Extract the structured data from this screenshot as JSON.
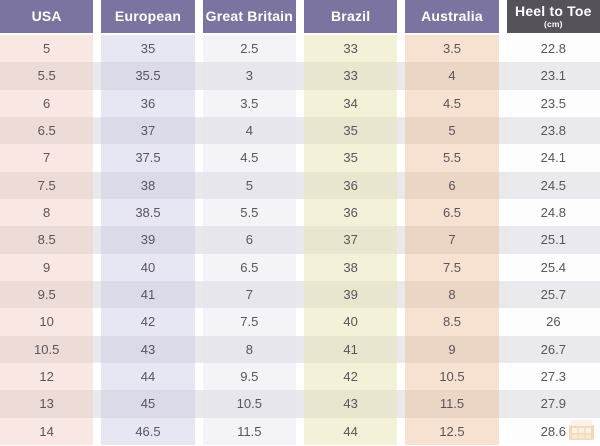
{
  "table": {
    "columns": [
      {
        "key": "usa",
        "label": "USA",
        "header_bg": "#7b73a0",
        "odd_bg": "#f9e7e3",
        "even_bg": "#ecdbd7"
      },
      {
        "key": "european",
        "label": "European",
        "header_bg": "#7b73a0",
        "odd_bg": "#e7e6f3",
        "even_bg": "#dbdae9"
      },
      {
        "key": "great-britain",
        "label": "Great Britain",
        "header_bg": "#7b73a0",
        "odd_bg": "#f4f3f8",
        "even_bg": "#e7e6ec"
      },
      {
        "key": "brazil",
        "label": "Brazil",
        "header_bg": "#7b73a0",
        "odd_bg": "#f3f1d8",
        "even_bg": "#e8e6cf"
      },
      {
        "key": "australia",
        "label": "Australia",
        "header_bg": "#7b73a0",
        "odd_bg": "#f7e1d0",
        "even_bg": "#ebd6c5"
      },
      {
        "key": "heel-to-toe",
        "label": "Heel to Toe",
        "sublabel": "(cm)",
        "header_bg": "#56525a",
        "odd_bg": "#fdfdfd",
        "even_bg": "#eae9ed"
      }
    ],
    "rows": [
      [
        "5",
        "35",
        "2.5",
        "33",
        "3.5",
        "22.8"
      ],
      [
        "5.5",
        "35.5",
        "3",
        "33",
        "4",
        "23.1"
      ],
      [
        "6",
        "36",
        "3.5",
        "34",
        "4.5",
        "23.5"
      ],
      [
        "6.5",
        "37",
        "4",
        "35",
        "5",
        "23.8"
      ],
      [
        "7",
        "37.5",
        "4.5",
        "35",
        "5.5",
        "24.1"
      ],
      [
        "7.5",
        "38",
        "5",
        "36",
        "6",
        "24.5"
      ],
      [
        "8",
        "38.5",
        "5.5",
        "36",
        "6.5",
        "24.8"
      ],
      [
        "8.5",
        "39",
        "6",
        "37",
        "7",
        "25.1"
      ],
      [
        "9",
        "40",
        "6.5",
        "38",
        "7.5",
        "25.4"
      ],
      [
        "9.5",
        "41",
        "7",
        "39",
        "8",
        "25.7"
      ],
      [
        "10",
        "42",
        "7.5",
        "40",
        "8.5",
        "26"
      ],
      [
        "10.5",
        "43",
        "8",
        "41",
        "9",
        "26.7"
      ],
      [
        "12",
        "44",
        "9.5",
        "42",
        "10.5",
        "27.3"
      ],
      [
        "13",
        "45",
        "10.5",
        "43",
        "11.5",
        "27.9"
      ],
      [
        "14",
        "46.5",
        "11.5",
        "44",
        "12.5",
        "28.6"
      ]
    ]
  },
  "chart_data": {
    "type": "table",
    "title": "Shoe size conversion table",
    "categories": [
      "USA",
      "European",
      "Great Britain",
      "Brazil",
      "Australia",
      "Heel to Toe (cm)"
    ],
    "series": [
      {
        "name": "USA",
        "values": [
          5,
          5.5,
          6,
          6.5,
          7,
          7.5,
          8,
          8.5,
          9,
          9.5,
          10,
          10.5,
          12,
          13,
          14
        ]
      },
      {
        "name": "European",
        "values": [
          35,
          35.5,
          36,
          37,
          37.5,
          38,
          38.5,
          39,
          40,
          41,
          42,
          43,
          44,
          45,
          46.5
        ]
      },
      {
        "name": "Great Britain",
        "values": [
          2.5,
          3,
          3.5,
          4,
          4.5,
          5,
          5.5,
          6,
          6.5,
          7,
          7.5,
          8,
          9.5,
          10.5,
          11.5
        ]
      },
      {
        "name": "Brazil",
        "values": [
          33,
          33,
          34,
          35,
          35,
          36,
          36,
          37,
          38,
          39,
          40,
          41,
          42,
          43,
          44
        ]
      },
      {
        "name": "Australia",
        "values": [
          3.5,
          4,
          4.5,
          5,
          5.5,
          6,
          6.5,
          7,
          7.5,
          8,
          8.5,
          9,
          10.5,
          11.5,
          12.5
        ]
      },
      {
        "name": "Heel to Toe (cm)",
        "values": [
          22.8,
          23.1,
          23.5,
          23.8,
          24.1,
          24.5,
          24.8,
          25.1,
          25.4,
          25.7,
          26,
          26.7,
          27.3,
          27.9,
          28.6
        ]
      }
    ]
  },
  "colors": {
    "row_odd": "#ffffff",
    "row_even": "#e9e8ec",
    "header_text": "#ffffff",
    "cell_text": "#59555b",
    "accent_purple": "#7b73a0",
    "accent_dark": "#56525a",
    "watermark_orange": "#e9a453",
    "watermark_light": "#f6e3c4"
  },
  "watermark": {
    "icon": "brand-logo-icon"
  }
}
